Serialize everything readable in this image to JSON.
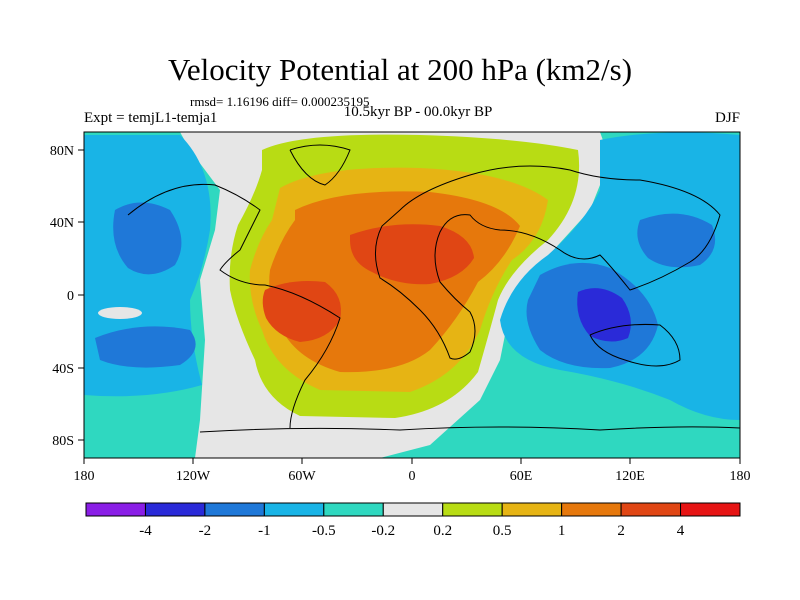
{
  "title": "Velocity Potential at 200 hPa (km2/s)",
  "stats_text": "rmsd= 1.16196 diff= 0.000235195",
  "left_label": "Expt = temjL1-temja1",
  "center_label": "10.5kyr BP - 00.0kyr BP",
  "right_label": "DJF",
  "lat_ticks": [
    "80N",
    "40N",
    "0",
    "40S",
    "80S"
  ],
  "lon_ticks": [
    "180",
    "120W",
    "60W",
    "0",
    "60E",
    "120E",
    "180"
  ],
  "colorbar": {
    "labels": [
      "-4",
      "-2",
      "-1",
      "-0.5",
      "-0.2",
      "0.2",
      "0.5",
      "1",
      "2",
      "4"
    ],
    "colors": [
      "#8a1ee6",
      "#2a2ad8",
      "#1f78d8",
      "#19b4e6",
      "#2fd8c0",
      "#e6e6e6",
      "#b8dc14",
      "#e6b414",
      "#e6780c",
      "#e04614",
      "#e61414"
    ]
  }
}
